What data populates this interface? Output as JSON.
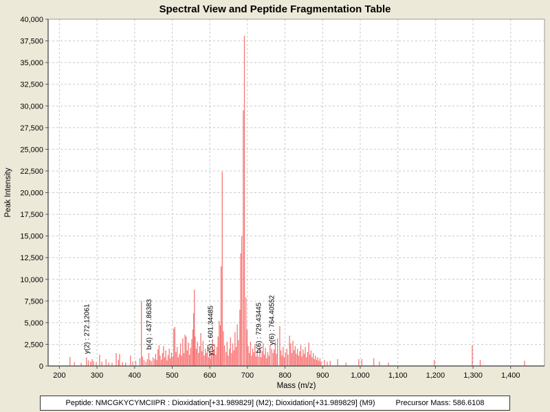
{
  "chart_data": {
    "type": "bar",
    "title": "Spectral View and Peptide Fragmentation Table",
    "xlabel": "Mass (m/z)",
    "ylabel": "Peak Intensity",
    "xlim": [
      170,
      1490
    ],
    "ylim": [
      0,
      40000
    ],
    "x_ticks": [
      200,
      300,
      400,
      500,
      600,
      700,
      800,
      900,
      1000,
      1100,
      1200,
      1300,
      1400
    ],
    "y_ticks": [
      0,
      2500,
      5000,
      7500,
      10000,
      12500,
      15000,
      17500,
      20000,
      22500,
      25000,
      27500,
      30000,
      32500,
      35000,
      37500,
      40000
    ],
    "grid": true,
    "colors": {
      "background": "#ECE9D8",
      "plot_background": "#FFFFFF",
      "gridline": "#C9C9C9",
      "plot_border": "#9A9A9A",
      "axis_line": "#555555",
      "peak": "#F87474",
      "text": "#000000"
    },
    "peaks": [
      [
        228,
        1050
      ],
      [
        240,
        450
      ],
      [
        258,
        350
      ],
      [
        272.12061,
        1000
      ],
      [
        277,
        650
      ],
      [
        283,
        500
      ],
      [
        287,
        800
      ],
      [
        291,
        550
      ],
      [
        298,
        400
      ],
      [
        307,
        1300
      ],
      [
        313,
        500
      ],
      [
        324,
        800
      ],
      [
        331,
        400
      ],
      [
        340,
        350
      ],
      [
        351,
        1500
      ],
      [
        357,
        700
      ],
      [
        360,
        1400
      ],
      [
        368,
        450
      ],
      [
        376,
        400
      ],
      [
        389,
        1200
      ],
      [
        395,
        500
      ],
      [
        403,
        600
      ],
      [
        414,
        900
      ],
      [
        418,
        7500
      ],
      [
        421,
        1100
      ],
      [
        425,
        700
      ],
      [
        430,
        500
      ],
      [
        434,
        800
      ],
      [
        437.86383,
        1500
      ],
      [
        441,
        700
      ],
      [
        445,
        550
      ],
      [
        449,
        1000
      ],
      [
        453,
        800
      ],
      [
        456,
        1400
      ],
      [
        459,
        700
      ],
      [
        462,
        1900
      ],
      [
        465,
        2400
      ],
      [
        468,
        1200
      ],
      [
        471,
        700
      ],
      [
        474,
        1500
      ],
      [
        477,
        2300
      ],
      [
        480,
        1000
      ],
      [
        483,
        1800
      ],
      [
        486,
        650
      ],
      [
        489,
        1250
      ],
      [
        492,
        2000
      ],
      [
        495,
        900
      ],
      [
        498,
        1550
      ],
      [
        501,
        1100
      ],
      [
        504,
        4300
      ],
      [
        507,
        4500
      ],
      [
        510,
        1600
      ],
      [
        513,
        2200
      ],
      [
        516,
        1000
      ],
      [
        519,
        1400
      ],
      [
        522,
        2600
      ],
      [
        525,
        1200
      ],
      [
        528,
        3200
      ],
      [
        531,
        1500
      ],
      [
        534,
        3600
      ],
      [
        537,
        3400
      ],
      [
        540,
        1800
      ],
      [
        543,
        2700
      ],
      [
        546,
        1300
      ],
      [
        549,
        2100
      ],
      [
        552,
        3100
      ],
      [
        555,
        4200
      ],
      [
        557,
        6100
      ],
      [
        559,
        8800
      ],
      [
        561,
        3400
      ],
      [
        564,
        2000
      ],
      [
        567,
        2800
      ],
      [
        570,
        1500
      ],
      [
        573,
        2300
      ],
      [
        576,
        3800
      ],
      [
        579,
        1700
      ],
      [
        582,
        2900
      ],
      [
        585,
        1200
      ],
      [
        588,
        2000
      ],
      [
        591,
        1500
      ],
      [
        594,
        2400
      ],
      [
        597,
        1000
      ],
      [
        600,
        1800
      ],
      [
        601.34485,
        800
      ],
      [
        604,
        1400
      ],
      [
        607,
        3100
      ],
      [
        610,
        1900
      ],
      [
        613,
        2500
      ],
      [
        616,
        1300
      ],
      [
        619,
        2200
      ],
      [
        622,
        3400
      ],
      [
        625,
        5200
      ],
      [
        628,
        4700
      ],
      [
        630,
        11500
      ],
      [
        633,
        22400
      ],
      [
        636,
        4000
      ],
      [
        639,
        2400
      ],
      [
        643,
        1600
      ],
      [
        646,
        2800
      ],
      [
        649,
        1200
      ],
      [
        652,
        2000
      ],
      [
        655,
        3300
      ],
      [
        658,
        1500
      ],
      [
        661,
        2600
      ],
      [
        664,
        1800
      ],
      [
        667,
        3900
      ],
      [
        670,
        2200
      ],
      [
        673,
        4800
      ],
      [
        676,
        3000
      ],
      [
        680,
        6500
      ],
      [
        682,
        13000
      ],
      [
        685,
        15000
      ],
      [
        689,
        29500
      ],
      [
        692,
        38100
      ],
      [
        696,
        7900
      ],
      [
        699,
        4200
      ],
      [
        702,
        2300
      ],
      [
        705,
        1500
      ],
      [
        708,
        2800
      ],
      [
        711,
        1200
      ],
      [
        714,
        2000
      ],
      [
        717,
        1600
      ],
      [
        720,
        2500
      ],
      [
        723,
        1100
      ],
      [
        726,
        1800
      ],
      [
        729.43445,
        1100
      ],
      [
        733,
        2200
      ],
      [
        736,
        1000
      ],
      [
        739,
        1700
      ],
      [
        742,
        2600
      ],
      [
        745,
        1300
      ],
      [
        748,
        2100
      ],
      [
        751,
        900
      ],
      [
        754,
        1600
      ],
      [
        757,
        1200
      ],
      [
        760,
        2400
      ],
      [
        764.40552,
        2000
      ],
      [
        768,
        1500
      ],
      [
        771,
        1900
      ],
      [
        774,
        2800
      ],
      [
        777,
        1400
      ],
      [
        780,
        3200
      ],
      [
        786,
        4600
      ],
      [
        789,
        1800
      ],
      [
        792,
        1200
      ],
      [
        795,
        2200
      ],
      [
        798,
        1000
      ],
      [
        801,
        1600
      ],
      [
        805,
        2000
      ],
      [
        808,
        1300
      ],
      [
        812,
        3500
      ],
      [
        815,
        2600
      ],
      [
        818,
        1500
      ],
      [
        821,
        2900
      ],
      [
        824,
        1800
      ],
      [
        827,
        2300
      ],
      [
        830,
        1400
      ],
      [
        833,
        2000
      ],
      [
        836,
        1200
      ],
      [
        839,
        1700
      ],
      [
        842,
        2400
      ],
      [
        845,
        1100
      ],
      [
        848,
        1900
      ],
      [
        851,
        1400
      ],
      [
        854,
        2200
      ],
      [
        857,
        1000
      ],
      [
        860,
        1600
      ],
      [
        863,
        2700
      ],
      [
        866,
        1300
      ],
      [
        869,
        1800
      ],
      [
        872,
        1000
      ],
      [
        875,
        1500
      ],
      [
        878,
        800
      ],
      [
        881,
        1200
      ],
      [
        884,
        700
      ],
      [
        887,
        1000
      ],
      [
        890,
        600
      ],
      [
        893,
        900
      ],
      [
        896,
        500
      ],
      [
        905,
        700
      ],
      [
        912,
        500
      ],
      [
        920,
        600
      ],
      [
        940,
        800
      ],
      [
        962,
        400
      ],
      [
        996,
        800
      ],
      [
        1004,
        800
      ],
      [
        1036,
        900
      ],
      [
        1051,
        500
      ],
      [
        1075,
        400
      ],
      [
        1197,
        700
      ],
      [
        1298,
        2400
      ],
      [
        1319,
        700
      ],
      [
        1437,
        600
      ]
    ],
    "annotations": [
      {
        "label": "y(2) : 272.12061",
        "mz": 272.12061,
        "intensity": 1000
      },
      {
        "label": "b(4) : 437.86383",
        "mz": 437.86383,
        "intensity": 1500
      },
      {
        "label": "y(5) : 601.34485",
        "mz": 601.34485,
        "intensity": 800
      },
      {
        "label": "b(6) : 729.43445",
        "mz": 729.43445,
        "intensity": 1100
      },
      {
        "label": "y(6) : 764.40552",
        "mz": 764.40552,
        "intensity": 2000
      }
    ],
    "legend": null
  },
  "footer": {
    "peptide_info": "Peptide: NMCGKYCYMCIIPR : Dioxidation[+31.989829] (M2); Dioxidation[+31.989829] (M9)",
    "precursor_mass": "Precursor Mass: 586.6108"
  }
}
